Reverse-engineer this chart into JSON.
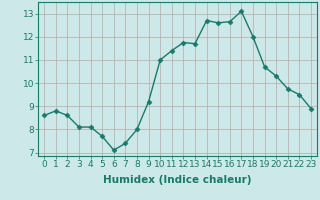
{
  "x": [
    0,
    1,
    2,
    3,
    4,
    5,
    6,
    7,
    8,
    9,
    10,
    11,
    12,
    13,
    14,
    15,
    16,
    17,
    18,
    19,
    20,
    21,
    22,
    23
  ],
  "y": [
    8.6,
    8.8,
    8.6,
    8.1,
    8.1,
    7.7,
    7.1,
    7.4,
    8.0,
    9.2,
    11.0,
    11.4,
    11.75,
    11.7,
    12.7,
    12.6,
    12.65,
    13.1,
    12.0,
    10.7,
    10.3,
    9.75,
    9.5,
    8.9
  ],
  "xlabel": "Humidex (Indice chaleur)",
  "xlim": [
    -0.5,
    23.5
  ],
  "ylim": [
    6.85,
    13.5
  ],
  "yticks": [
    7,
    8,
    9,
    10,
    11,
    12,
    13
  ],
  "xticks": [
    0,
    1,
    2,
    3,
    4,
    5,
    6,
    7,
    8,
    9,
    10,
    11,
    12,
    13,
    14,
    15,
    16,
    17,
    18,
    19,
    20,
    21,
    22,
    23
  ],
  "line_color": "#1a7a6a",
  "bg_color": "#cce8e8",
  "grid_color": "#b8a8a8",
  "marker": "D",
  "marker_size": 2.5,
  "line_width": 1.0,
  "xlabel_fontsize": 7.5,
  "tick_fontsize": 6.5
}
